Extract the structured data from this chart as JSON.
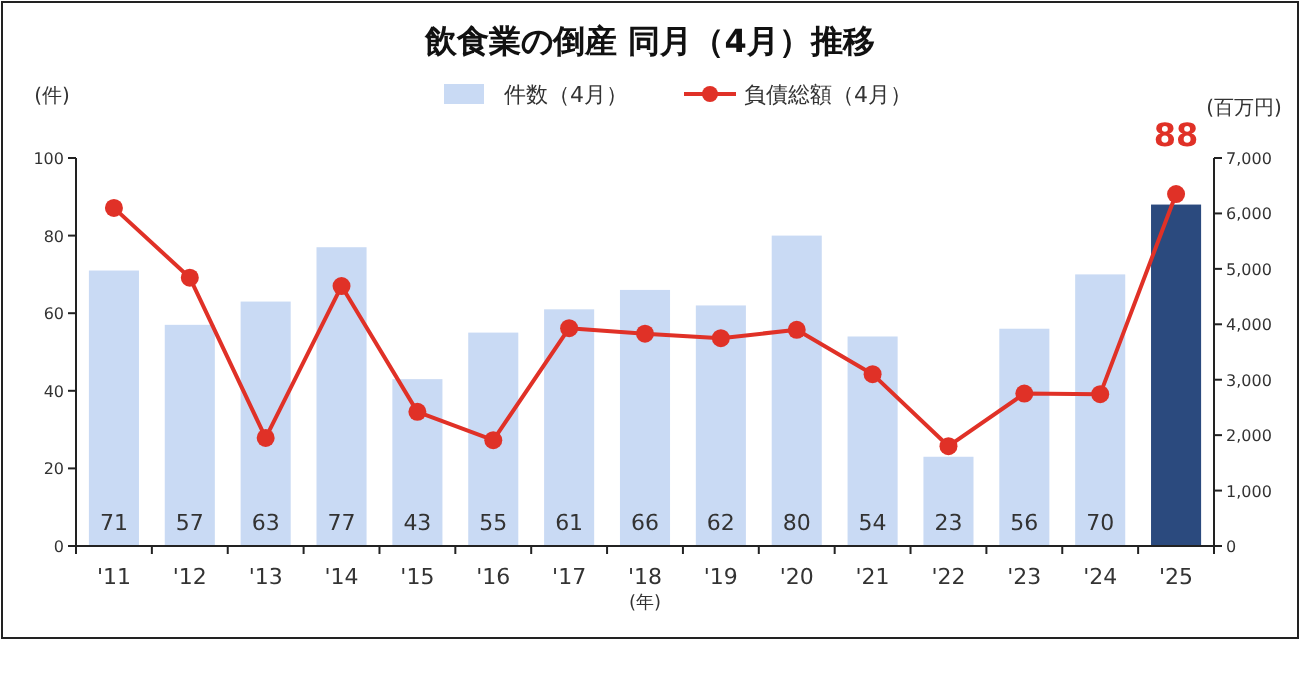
{
  "chart_data": {
    "type": "bar",
    "title": "飲食業の倒産 同月（4月）推移",
    "xlabel": "(年)",
    "ylabel": "(件)",
    "y2label": "(百万円)",
    "categories": [
      "'11",
      "'12",
      "'13",
      "'14",
      "'15",
      "'16",
      "'17",
      "'18",
      "'19",
      "'20",
      "'21",
      "'22",
      "'23",
      "'24",
      "'25"
    ],
    "series": [
      {
        "name": "件数（4月）",
        "color": "#c9daf4",
        "colors": [
          "#c9daf4",
          "#c9daf4",
          "#c9daf4",
          "#c9daf4",
          "#c9daf4",
          "#c9daf4",
          "#c9daf4",
          "#c9daf4",
          "#c9daf4",
          "#c9daf4",
          "#c9daf4",
          "#c9daf4",
          "#c9daf4",
          "#c9daf4",
          "#2b4a7e"
        ],
        "values": [
          71,
          57,
          63,
          77,
          43,
          55,
          61,
          66,
          62,
          80,
          54,
          23,
          56,
          70,
          88
        ],
        "value_labels": [
          "71",
          "57",
          "63",
          "77",
          "43",
          "55",
          "61",
          "66",
          "62",
          "80",
          "54",
          "23",
          "56",
          "70",
          null
        ]
      },
      {
        "name": "負債総額（4月）",
        "type": "line",
        "axis": "y2",
        "color": "#e03127",
        "marker": "circle",
        "values": [
          6100,
          4840,
          1950,
          4690,
          2420,
          1910,
          3930,
          3830,
          3750,
          3900,
          3100,
          1800,
          2750,
          2740,
          6350
        ]
      }
    ],
    "annotations": [
      {
        "text": "88",
        "x": "'25",
        "y": 88
      }
    ],
    "ylim": [
      0,
      100
    ],
    "yticks": [
      0,
      20,
      40,
      60,
      80,
      100
    ],
    "y2lim": [
      0,
      7000
    ],
    "y2ticks": [
      {
        "value": 0,
        "label": "0"
      },
      {
        "value": 1000,
        "label": "1,000"
      },
      {
        "value": 2000,
        "label": "2,000"
      },
      {
        "value": 3000,
        "label": "3,000"
      },
      {
        "value": 4000,
        "label": "4,000"
      },
      {
        "value": 5000,
        "label": "5,000"
      },
      {
        "value": 6000,
        "label": "6,000"
      },
      {
        "value": 7000,
        "label": "7,000"
      }
    ],
    "legend": "top"
  }
}
